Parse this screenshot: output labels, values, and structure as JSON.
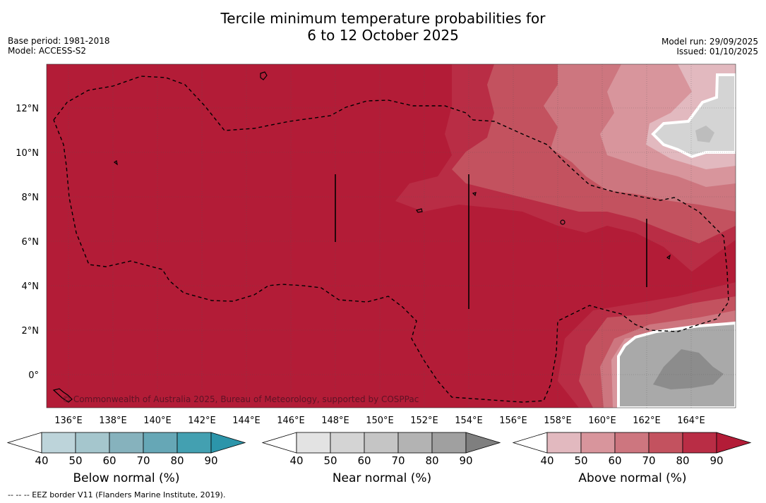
{
  "header": {
    "title_line1": "Tercile minimum temperature probabilities for",
    "title_line2": "6 to 12 October 2025",
    "base_period": "Base period: 1981-2018",
    "model": "Model: ACCESS-S2",
    "model_run": "Model run: 29/09/2025",
    "issued": "Issued: 01/10/2025"
  },
  "map": {
    "copyright": "© Commonwealth of Australia 2025, Bureau of Meteorology, supported by COSPPac",
    "lon_ticks": [
      "136°E",
      "138°E",
      "140°E",
      "142°E",
      "144°E",
      "146°E",
      "148°E",
      "150°E",
      "152°E",
      "154°E",
      "156°E",
      "158°E",
      "160°E",
      "162°E",
      "164°E"
    ],
    "lat_ticks": [
      "12°N",
      "10°N",
      "8°N",
      "6°N",
      "4°N",
      "2°N",
      "0°"
    ],
    "lon_range": [
      134.0,
      165.0
    ],
    "lat_range": [
      -1.5,
      14.0
    ]
  },
  "legend": {
    "ticks": [
      "40",
      "50",
      "60",
      "70",
      "80",
      "90"
    ],
    "below": {
      "label": "Below normal (%)",
      "colors": [
        "#bdd4da",
        "#a5c6cd",
        "#86b2bd",
        "#66a7b6",
        "#43a0b1",
        "#2c95aa"
      ]
    },
    "near": {
      "label": "Near normal (%)",
      "colors": [
        "#e3e3e3",
        "#d4d4d4",
        "#c5c5c5",
        "#b3b3b3",
        "#a0a0a0",
        "#7f7f7f"
      ]
    },
    "above": {
      "label": "Above normal (%)",
      "colors": [
        "#e2b9bf",
        "#d8959c",
        "#cd767f",
        "#c3525f",
        "#b92d45",
        "#b31c37"
      ]
    }
  },
  "footnote": "--  --  -- EEZ border V11 (Flanders Marine Institute, 2019)."
}
